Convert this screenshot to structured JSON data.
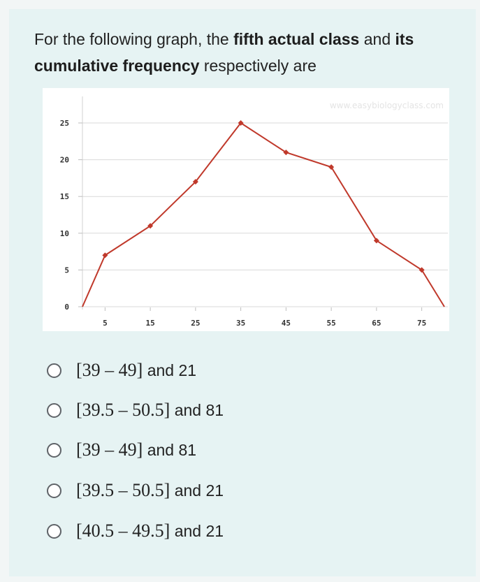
{
  "question": {
    "part1": "For the following graph, the ",
    "bold1": "fifth actual class",
    "part2": " and ",
    "bold2": "its cumulative frequency",
    "part3": " respectively are"
  },
  "watermark": "www.easybiologyclass.com",
  "chart_data": {
    "type": "line",
    "x": [
      0,
      5,
      15,
      25,
      35,
      45,
      55,
      65,
      75,
      80
    ],
    "y": [
      0,
      7,
      11,
      17,
      25,
      21,
      19,
      9,
      5,
      0
    ],
    "x_ticks": [
      "5",
      "15",
      "25",
      "35",
      "45",
      "55",
      "65",
      "75"
    ],
    "y_ticks": [
      "0",
      "5",
      "10",
      "15",
      "20",
      "25"
    ],
    "ylim": [
      0,
      25
    ],
    "grid": true,
    "line_color": "#c0392b",
    "title": "",
    "xlabel": "",
    "ylabel": ""
  },
  "options": [
    {
      "math": "[39 – 49]",
      "word": " and 21"
    },
    {
      "math": "[39.5 – 50.5]",
      "word": " and 81"
    },
    {
      "math": "[39 – 49]",
      "word": " and 81"
    },
    {
      "math": "[39.5 – 50.5]",
      "word": " and 21"
    },
    {
      "math": "[40.5 – 49.5]",
      "word": " and 21"
    }
  ]
}
